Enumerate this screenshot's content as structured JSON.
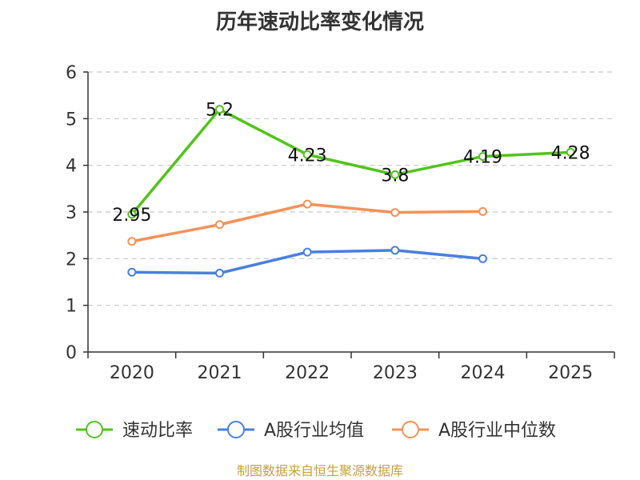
{
  "chart_data": {
    "type": "line",
    "title": "历年速动比率变化情况",
    "categories": [
      "2020",
      "2021",
      "2022",
      "2023",
      "2024",
      "2025"
    ],
    "y_ticks": [
      "0",
      "1",
      "2",
      "3",
      "4",
      "5",
      "6"
    ],
    "ylim": [
      0,
      6
    ],
    "grid": "horizontal-dashed",
    "legend_position": "bottom",
    "series": [
      {
        "name": "速动比率",
        "color": "#52c41a",
        "values": [
          2.95,
          5.2,
          4.23,
          3.8,
          4.19,
          4.28
        ],
        "labels": [
          "2.95",
          "5.2",
          "4.23",
          "3.8",
          "4.19",
          "4.28"
        ]
      },
      {
        "name": "A股行业均值",
        "color": "#4a7fe0",
        "values": [
          1.71,
          1.69,
          2.14,
          2.18,
          2.0,
          null
        ]
      },
      {
        "name": "A股行业中位数",
        "color": "#f59158",
        "values": [
          2.37,
          2.73,
          3.17,
          2.99,
          3.01,
          null
        ]
      }
    ],
    "source": "制图数据来自恒生聚源数据库"
  }
}
